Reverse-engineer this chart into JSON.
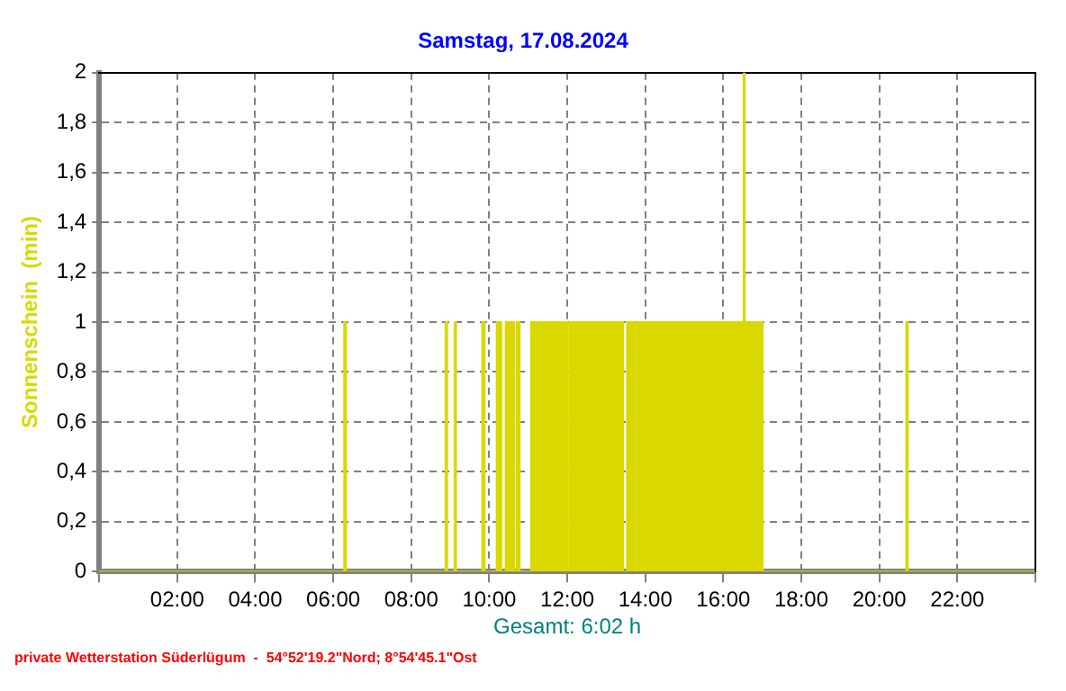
{
  "chart_data": {
    "type": "area",
    "title": "Samstag, 17.08.2024",
    "ylabel": "Sonnenschein  (min)",
    "annotations": [
      "Gesamt: 6:02 h",
      "private Wetterstation Süderlügum  -  54°52'19.2\"Nord; 8°54'45.1\"Ost"
    ],
    "series": [
      {
        "color": "#d9d900",
        "x": [
          0,
          6.28,
          6.28,
          6.33,
          6.33,
          8.88,
          8.88,
          8.92,
          8.92,
          9.11,
          9.11,
          9.15,
          9.15,
          9.82,
          9.82,
          9.88,
          9.88,
          10.19,
          10.19,
          10.31,
          10.31,
          10.42,
          10.42,
          10.64,
          10.64,
          10.7,
          10.7,
          10.78,
          10.78,
          11.07,
          11.07,
          12.0,
          12.0,
          12.05,
          12.05,
          13.43,
          13.43,
          13.53,
          13.53,
          13.75,
          13.75,
          13.8,
          13.8,
          16.52,
          16.52,
          16.55,
          16.55,
          17.01,
          17.01,
          20.69,
          20.69,
          20.73,
          20.73,
          24
        ],
        "values": [
          0,
          0,
          1,
          1,
          0,
          0,
          1,
          1,
          0,
          0,
          1,
          1,
          0,
          0,
          1,
          1,
          0,
          0,
          1,
          1,
          0,
          0,
          1,
          1,
          0,
          0,
          1,
          1,
          0,
          0,
          1,
          1,
          0,
          0,
          1,
          1,
          0,
          0,
          1,
          1,
          0,
          0,
          1,
          1,
          2,
          2,
          1,
          1,
          0,
          0,
          1,
          1,
          0,
          0
        ]
      }
    ],
    "xlim": [
      0,
      24
    ],
    "xticks": [
      {
        "value": 0,
        "label": null
      },
      {
        "value": 2,
        "label": "02:00"
      },
      {
        "value": 4,
        "label": "04:00"
      },
      {
        "value": 6,
        "label": "06:00"
      },
      {
        "value": 8,
        "label": "08:00"
      },
      {
        "value": 10,
        "label": "10:00"
      },
      {
        "value": 12,
        "label": "12:00"
      },
      {
        "value": 14,
        "label": "14:00"
      },
      {
        "value": 16,
        "label": "16:00"
      },
      {
        "value": 18,
        "label": "18:00"
      },
      {
        "value": 20,
        "label": "20:00"
      },
      {
        "value": 22,
        "label": "22:00"
      },
      {
        "value": 24,
        "label": null
      }
    ],
    "ylim": [
      0,
      2
    ],
    "yticks": [
      0,
      {
        "value": 0.2,
        "label": "0,2"
      },
      {
        "value": 0.4,
        "label": "0,4"
      },
      {
        "value": 0.6,
        "label": "0,6"
      },
      {
        "value": 0.8,
        "label": "0,8"
      },
      1,
      {
        "value": 1.2,
        "label": "1,2"
      },
      {
        "value": 1.4,
        "label": "1,4"
      },
      {
        "value": 1.6,
        "label": "1,6"
      },
      {
        "value": 1.8,
        "label": "1,8"
      },
      2
    ],
    "grid": true,
    "legend": false
  }
}
